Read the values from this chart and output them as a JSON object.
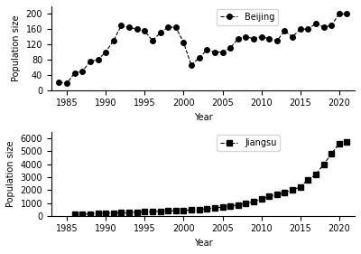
{
  "beijing_years": [
    1984,
    1985,
    1986,
    1987,
    1988,
    1989,
    1990,
    1991,
    1992,
    1993,
    1994,
    1995,
    1996,
    1997,
    1998,
    1999,
    2000,
    2001,
    2002,
    2003,
    2004,
    2005,
    2006,
    2007,
    2008,
    2009,
    2010,
    2011,
    2012,
    2013,
    2014,
    2015,
    2016,
    2017,
    2018,
    2019,
    2020,
    2021
  ],
  "beijing_values": [
    20,
    18,
    45,
    50,
    75,
    80,
    100,
    130,
    170,
    165,
    160,
    155,
    130,
    150,
    165,
    165,
    125,
    65,
    85,
    105,
    100,
    100,
    110,
    135,
    140,
    135,
    140,
    135,
    130,
    155,
    140,
    160,
    160,
    175,
    165,
    170,
    200,
    200
  ],
  "jiangsu_years": [
    1986,
    1987,
    1988,
    1989,
    1990,
    1991,
    1992,
    1993,
    1994,
    1995,
    1996,
    1997,
    1998,
    1999,
    2000,
    2001,
    2002,
    2003,
    2004,
    2005,
    2006,
    2007,
    2008,
    2009,
    2010,
    2011,
    2012,
    2013,
    2014,
    2015,
    2016,
    2017,
    2018,
    2019,
    2020,
    2021
  ],
  "jiangsu_values": [
    100,
    120,
    150,
    180,
    200,
    220,
    230,
    250,
    280,
    300,
    320,
    350,
    380,
    400,
    420,
    450,
    480,
    550,
    600,
    680,
    750,
    850,
    950,
    1100,
    1300,
    1500,
    1650,
    1800,
    2000,
    2250,
    2800,
    3200,
    4000,
    4800,
    5600,
    5700
  ],
  "beijing_ylim": [
    0,
    220
  ],
  "jiangsu_ylim": [
    0,
    6500
  ],
  "beijing_yticks": [
    0,
    40,
    80,
    120,
    160,
    200
  ],
  "jiangsu_yticks": [
    0,
    1000,
    2000,
    3000,
    4000,
    5000,
    6000
  ],
  "xticks": [
    1985,
    1990,
    1995,
    2000,
    2005,
    2010,
    2015,
    2020
  ],
  "xlabel": "Year",
  "ylabel": "Population size",
  "beijing_label": "Beijing",
  "jiangsu_label": "Jiangsu",
  "line_color": "black",
  "marker_circle": "o",
  "marker_square": "s",
  "markersize": 4,
  "linewidth": 0.8,
  "background_color": "#ffffff"
}
